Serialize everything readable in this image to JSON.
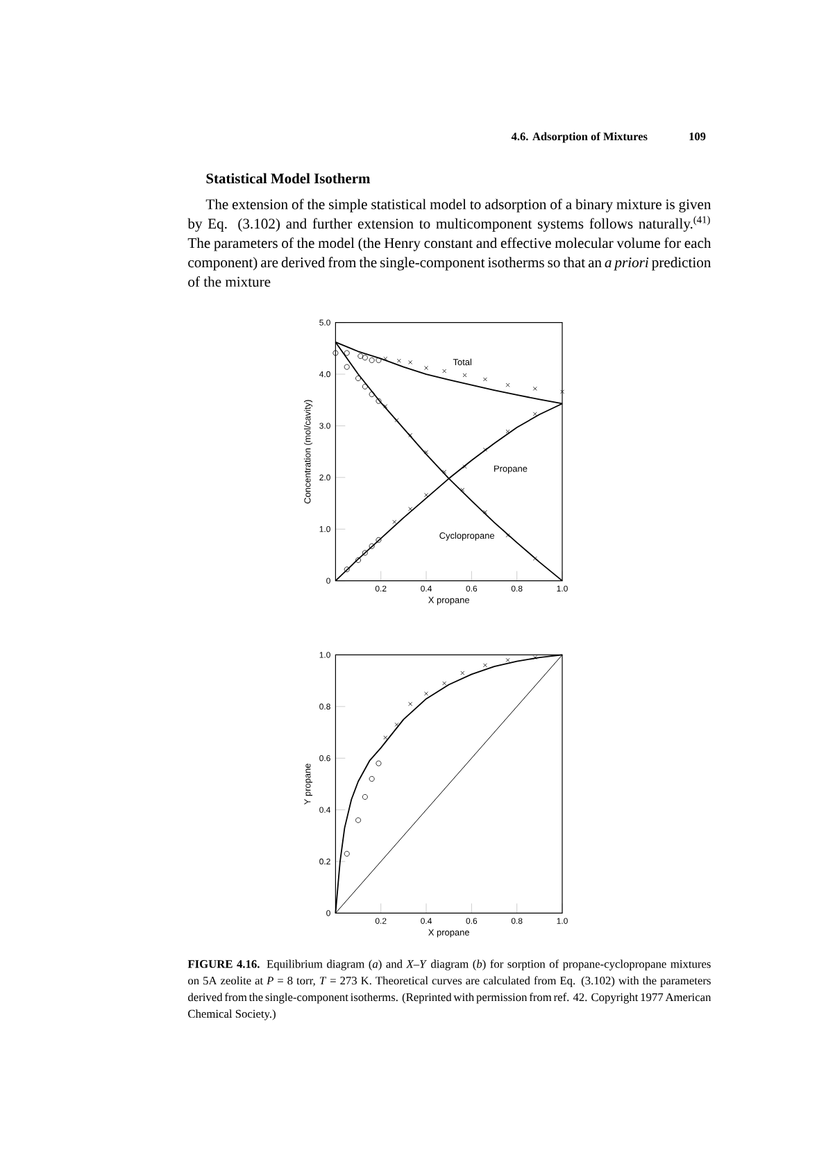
{
  "chart_data": [
    {
      "type": "line",
      "xlabel": "X propane",
      "ylabel": "Concentration (mol/cavity)",
      "xlim": [
        0,
        1
      ],
      "ylim": [
        0,
        5
      ],
      "xticks": [
        0.2,
        0.4,
        0.6,
        0.8,
        {
          "value": 1,
          "label": "1.0"
        }
      ],
      "yticks": [
        0,
        {
          "value": 1,
          "label": "1.0"
        },
        {
          "value": 2,
          "label": "2.0"
        },
        {
          "value": 3,
          "label": "3.0"
        },
        {
          "value": 4,
          "label": "4.0"
        },
        {
          "value": 5,
          "label": "5.0"
        }
      ],
      "annotations": [
        "4.6.  Adsorption of Mixtures",
        "109",
        "**Statistical Model Isotherm**",
        "The extension of the simple statistical model to adsorption of a binary mixture is given by Eq. (3.102) and further extension to multicomponent systems follows naturally.$^{(41)}$ The parameters of the model (the Henry constant and effective molecular volume for each component) are derived from the single-component isotherms so that an *a priori* prediction of the mixture"
      ],
      "series": [
        {
          "name": "Total",
          "type": "line",
          "color": "#000000",
          "marker": "none",
          "x": [
            0,
            0.1,
            0.2,
            0.3,
            0.4,
            0.5,
            0.6,
            0.7,
            0.8,
            0.9,
            1.0
          ],
          "values": [
            4.62,
            4.44,
            4.3,
            4.14,
            4.0,
            3.89,
            3.79,
            3.69,
            3.6,
            3.51,
            3.43
          ]
        },
        {
          "name": "Cyclopropane",
          "type": "line",
          "color": "#000000",
          "marker": "none",
          "x": [
            0,
            0.1,
            0.2,
            0.3,
            0.4,
            0.5,
            0.6,
            0.7,
            0.8,
            0.9,
            1.0
          ],
          "values": [
            4.62,
            4.0,
            3.45,
            2.95,
            2.45,
            1.98,
            1.55,
            1.13,
            0.74,
            0.36,
            0
          ]
        },
        {
          "name": "Propane",
          "type": "line",
          "color": "#000000",
          "marker": "none",
          "x": [
            0,
            0.1,
            0.2,
            0.3,
            0.4,
            0.5,
            0.6,
            0.7,
            0.8,
            0.9,
            1.0
          ],
          "values": [
            0,
            0.42,
            0.82,
            1.22,
            1.6,
            1.98,
            2.33,
            2.66,
            2.97,
            3.22,
            3.43
          ]
        },
        {
          "type": "scatter",
          "color": "#000000",
          "marker": "circle",
          "x": [
            0,
            0.05,
            0.11,
            0.13,
            0.16,
            0.19,
            0.05,
            0.1,
            0.13,
            0.16,
            0.19,
            0.05,
            0.1,
            0.13,
            0.16,
            0.19
          ],
          "values": [
            4.41,
            4.41,
            4.35,
            4.32,
            4.27,
            4.27,
            4.14,
            3.92,
            3.76,
            3.61,
            3.48,
            0.22,
            0.4,
            0.54,
            0.67,
            0.79
          ]
        },
        {
          "type": "scatter",
          "color": "#000000",
          "marker": "cross",
          "x": [
            0.22,
            0.28,
            0.33,
            0.4,
            0.48,
            0.57,
            0.66,
            0.76,
            0.88,
            1.0,
            0.22,
            0.27,
            0.33,
            0.4,
            0.56,
            0.66,
            0.76,
            0.88,
            0.26,
            0.33,
            0.4,
            0.48,
            0.57,
            0.66,
            0.76,
            0.88
          ],
          "values": [
            4.3,
            4.26,
            4.23,
            4.12,
            4.06,
            3.98,
            3.9,
            3.79,
            3.72,
            3.66,
            3.38,
            3.11,
            2.82,
            2.49,
            1.76,
            1.33,
            0.88,
            0.43,
            1.14,
            1.39,
            1.66,
            2.11,
            2.21,
            2.54,
            2.89,
            3.23
          ]
        }
      ]
    },
    {
      "type": "line",
      "xlabel": "X propane",
      "ylabel": "Y propane",
      "xlim": [
        0,
        1
      ],
      "ylim": [
        0,
        1
      ],
      "xticks": [
        0.2,
        0.4,
        0.6,
        0.8,
        {
          "value": 1,
          "label": "1.0"
        }
      ],
      "yticks": [
        0,
        0.2,
        0.4,
        0.6,
        0.8,
        {
          "value": 1,
          "label": "1.0"
        }
      ],
      "annotations": [
        "**FIGURE 4.16.** Equilibrium diagram (*a*) and *X–Y* diagram (*b*) for sorption of propane-cyclopropane mixtures on 5A zeolite at *P* = 8 torr, *T* = 273 K. Theoretical curves are calculated from Eq. (3.102) with the parameters derived from the single-component isotherms. (Reprinted with permission from ref. 42. Copyright 1977 American Chemical Society.)"
      ],
      "series": [
        {
          "type": "line",
          "color": "#000000",
          "marker": "none",
          "x": [
            0,
            0.01,
            0.02,
            0.04,
            0.07,
            0.1,
            0.15,
            0.2,
            0.3,
            0.4,
            0.5,
            0.6,
            0.7,
            0.8,
            0.9,
            1.0
          ],
          "values": [
            0,
            0.1,
            0.2,
            0.33,
            0.44,
            0.51,
            0.59,
            0.64,
            0.75,
            0.83,
            0.885,
            0.925,
            0.955,
            0.975,
            0.99,
            1.0
          ]
        },
        {
          "type": "line",
          "color": "#000000",
          "marker": "none",
          "x": [
            0,
            1
          ],
          "values": [
            0,
            1
          ]
        },
        {
          "type": "scatter",
          "color": "#000000",
          "marker": "circle",
          "x": [
            0.05,
            0.1,
            0.13,
            0.16,
            0.19
          ],
          "values": [
            0.23,
            0.36,
            0.45,
            0.52,
            0.58
          ]
        },
        {
          "type": "scatter",
          "color": "#000000",
          "marker": "cross",
          "x": [
            0.22,
            0.27,
            0.33,
            0.4,
            0.48,
            0.56,
            0.66,
            0.76,
            0.88
          ],
          "values": [
            0.68,
            0.73,
            0.81,
            0.85,
            0.89,
            0.93,
            0.96,
            0.98,
            0.99
          ]
        }
      ]
    }
  ]
}
